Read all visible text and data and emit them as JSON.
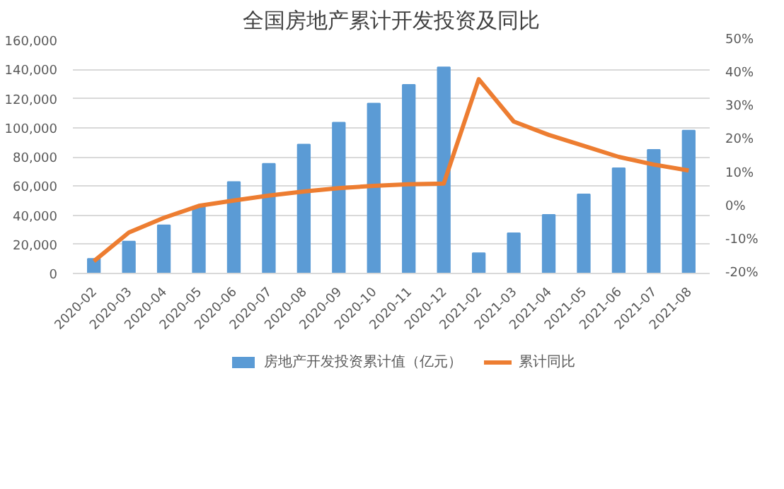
{
  "chart_data": {
    "type": "bar",
    "title": "全国房地产累计开发投资及同比",
    "categories": [
      "2020-02",
      "2020-03",
      "2020-04",
      "2020-05",
      "2020-06",
      "2020-07",
      "2020-08",
      "2020-09",
      "2020-10",
      "2020-11",
      "2020-12",
      "2021-02",
      "2021-03",
      "2021-04",
      "2021-05",
      "2021-06",
      "2021-07",
      "2021-08"
    ],
    "series": [
      {
        "name": "房地产开发投资累计值（亿元）",
        "color": "#5b9bd5",
        "values": [
          10100,
          22000,
          33100,
          45900,
          62800,
          75300,
          88500,
          103500,
          116600,
          129500,
          141400,
          14000,
          27600,
          40200,
          54300,
          72200,
          84900,
          98100
        ]
      },
      {
        "name": "累计同比",
        "type": "line",
        "axis": "y2",
        "color": "#ed7d31",
        "values": [
          -16.3,
          -7.7,
          -3.3,
          0.3,
          1.9,
          3.4,
          4.6,
          5.6,
          6.3,
          6.8,
          7.0,
          38.3,
          25.6,
          21.6,
          18.3,
          15.0,
          12.7,
          10.9
        ]
      }
    ],
    "ylim": [
      0,
      160000
    ],
    "yticks": [
      {
        "value": 0,
        "label": "0"
      },
      {
        "value": 20000,
        "label": "20,000"
      },
      {
        "value": 40000,
        "label": "40,000"
      },
      {
        "value": 60000,
        "label": "60,000"
      },
      {
        "value": 80000,
        "label": "80,000"
      },
      {
        "value": 100000,
        "label": "100,000"
      },
      {
        "value": 120000,
        "label": "120,000"
      },
      {
        "value": 140000,
        "label": "140,000"
      },
      {
        "value": 160000,
        "label": "160,000"
      }
    ],
    "y2lim": [
      -20,
      50
    ],
    "y2ticks": [
      {
        "value": -20,
        "label": "-20%"
      },
      {
        "value": -10,
        "label": "-10%"
      },
      {
        "value": 0,
        "label": "0%"
      },
      {
        "value": 10,
        "label": "10%"
      },
      {
        "value": 20,
        "label": "20%"
      },
      {
        "value": 30,
        "label": "30%"
      },
      {
        "value": 40,
        "label": "40%"
      },
      {
        "value": 50,
        "label": "50%"
      }
    ],
    "grid": "y",
    "legend": "bottom",
    "marker": "none",
    "line_style": "solid"
  }
}
